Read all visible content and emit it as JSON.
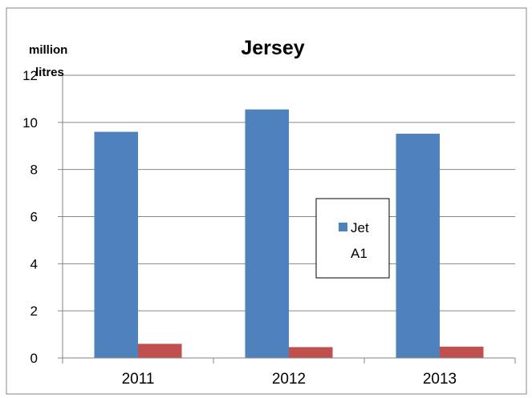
{
  "chart_data": {
    "type": "bar",
    "title": "Jersey",
    "ylabel": "million litres",
    "xlabel": "",
    "categories": [
      "2011",
      "2012",
      "2013"
    ],
    "series": [
      {
        "name": "Jet A1",
        "color": "#4f81bd",
        "values": [
          9.6,
          10.55,
          9.52
        ]
      },
      {
        "values": [
          0.6,
          0.46,
          0.48
        ],
        "color": "#c0504d"
      }
    ],
    "ylim": [
      0,
      12
    ],
    "yticks": [
      0,
      2,
      4,
      6,
      8,
      10,
      12
    ],
    "grid": true,
    "legend": "center-right"
  }
}
